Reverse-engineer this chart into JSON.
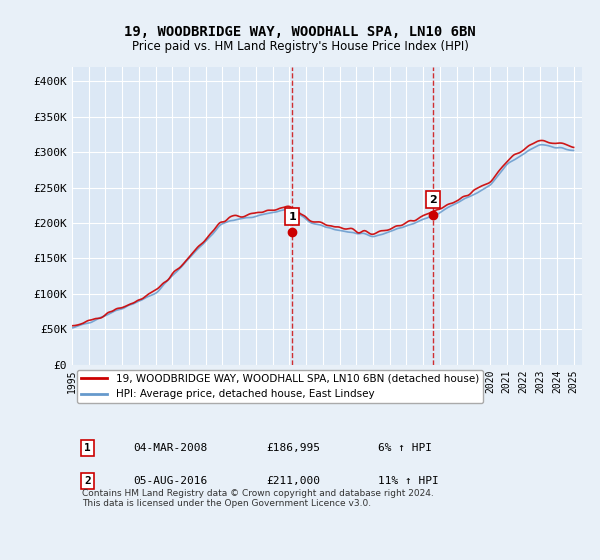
{
  "title": "19, WOODBRIDGE WAY, WOODHALL SPA, LN10 6BN",
  "subtitle": "Price paid vs. HM Land Registry's House Price Index (HPI)",
  "ylabel_ticks": [
    "£0",
    "£50K",
    "£100K",
    "£150K",
    "£200K",
    "£250K",
    "£300K",
    "£350K",
    "£400K"
  ],
  "ytick_values": [
    0,
    50000,
    100000,
    150000,
    200000,
    250000,
    300000,
    350000,
    400000
  ],
  "ylim": [
    0,
    420000
  ],
  "xlim_start": 1995.0,
  "xlim_end": 2025.5,
  "background_color": "#e8f0f8",
  "plot_bg_color": "#dce8f5",
  "grid_color": "#ffffff",
  "red_line_color": "#cc0000",
  "blue_line_color": "#6699cc",
  "marker_color": "#cc0000",
  "dashed_line_color": "#cc0000",
  "sale1_x": 2008.17,
  "sale1_y": 186995,
  "sale1_label": "1",
  "sale2_x": 2016.58,
  "sale2_y": 211000,
  "sale2_label": "2",
  "legend1": "19, WOODBRIDGE WAY, WOODHALL SPA, LN10 6BN (detached house)",
  "legend2": "HPI: Average price, detached house, East Lindsey",
  "table_rows": [
    [
      "1",
      "04-MAR-2008",
      "£186,995",
      "6% ↑ HPI"
    ],
    [
      "2",
      "05-AUG-2016",
      "£211,000",
      "11% ↑ HPI"
    ]
  ],
  "footnote": "Contains HM Land Registry data © Crown copyright and database right 2024.\nThis data is licensed under the Open Government Licence v3.0.",
  "xtick_years": [
    1995,
    1996,
    1997,
    1998,
    1999,
    2000,
    2001,
    2002,
    2003,
    2004,
    2005,
    2006,
    2007,
    2008,
    2009,
    2010,
    2011,
    2012,
    2013,
    2014,
    2015,
    2016,
    2017,
    2018,
    2019,
    2020,
    2021,
    2022,
    2023,
    2024,
    2025
  ]
}
